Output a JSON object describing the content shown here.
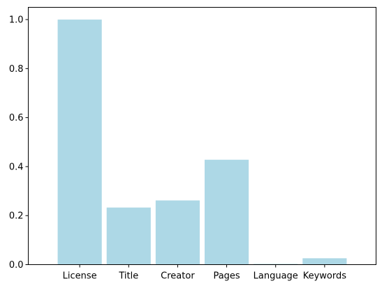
{
  "chart_data": {
    "type": "bar",
    "categories": [
      "License",
      "Title",
      "Creator",
      "Pages",
      "Language",
      "Keywords"
    ],
    "values": [
      1.0,
      0.233,
      0.262,
      0.428,
      0.003,
      0.026
    ],
    "ylim": [
      0,
      1.05
    ],
    "yticks": [
      0.0,
      0.2,
      0.4,
      0.6,
      0.8,
      1.0
    ],
    "ytick_labels": [
      "0.0",
      "0.2",
      "0.4",
      "0.6",
      "0.8",
      "1.0"
    ],
    "bar_color": "#add8e6",
    "grid": false,
    "title": "",
    "xlabel": "",
    "ylabel": ""
  }
}
